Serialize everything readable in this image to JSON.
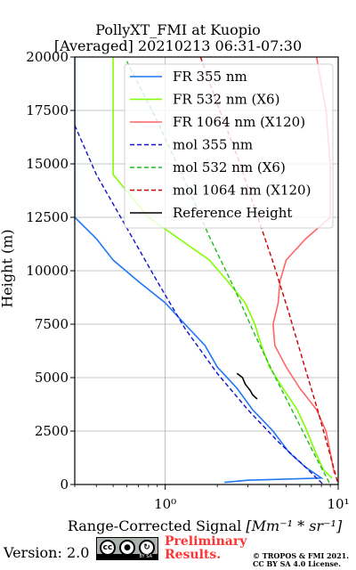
{
  "chart_data": {
    "type": "line",
    "title": "PollyXT_FMI at Kuopio",
    "subtitle": "[Averaged] 20210213 06:31-07:30",
    "ylabel": "Height (m)",
    "xlabel_text": "Range-Corrected Signal",
    "xlabel_units": "[Mm⁻¹ * sr⁻¹]",
    "xscale": "log",
    "xlim": [
      0.3,
      10
    ],
    "ylim": [
      0,
      20000
    ],
    "xticks": [
      {
        "value": 1,
        "label": "10⁰"
      },
      {
        "value": 10,
        "label": "10¹"
      }
    ],
    "yticks": [
      0,
      2500,
      5000,
      7500,
      10000,
      12500,
      15000,
      17500,
      20000
    ],
    "grid": true,
    "legend_position": "top-right",
    "series": [
      {
        "name": "FR 355 nm",
        "color": "#1f77f4",
        "style": "solid",
        "points": [
          [
            0.3,
            20000
          ],
          [
            0.3,
            17500
          ],
          [
            0.3,
            15000
          ],
          [
            0.3,
            12500
          ],
          [
            0.4,
            11500
          ],
          [
            0.5,
            10500
          ],
          [
            0.7,
            9500
          ],
          [
            1.0,
            8500
          ],
          [
            1.3,
            7500
          ],
          [
            1.7,
            6500
          ],
          [
            2.0,
            5500
          ],
          [
            2.6,
            4500
          ],
          [
            3.2,
            3500
          ],
          [
            4.2,
            2500
          ],
          [
            5.2,
            1500
          ],
          [
            6.5,
            800
          ],
          [
            8.0,
            300
          ],
          [
            3.0,
            200
          ],
          [
            2.2,
            100
          ]
        ]
      },
      {
        "name": "FR 532 nm (X6)",
        "color": "#7fff00",
        "style": "solid",
        "points": [
          [
            0.5,
            20000
          ],
          [
            0.5,
            17000
          ],
          [
            0.5,
            14500
          ],
          [
            0.8,
            12500
          ],
          [
            1.2,
            11500
          ],
          [
            1.8,
            10500
          ],
          [
            2.3,
            9500
          ],
          [
            2.9,
            8500
          ],
          [
            3.3,
            7500
          ],
          [
            3.6,
            6500
          ],
          [
            4.0,
            5500
          ],
          [
            4.8,
            4500
          ],
          [
            5.8,
            3500
          ],
          [
            6.6,
            2500
          ],
          [
            7.4,
            1500
          ],
          [
            8.2,
            700
          ],
          [
            9.2,
            300
          ]
        ]
      },
      {
        "name": "FR 1064 nm (X120)",
        "color": "#ff6666",
        "style": "solid",
        "points": [
          [
            7.5,
            20000
          ],
          [
            8.5,
            17500
          ],
          [
            9.0,
            15000
          ],
          [
            9.0,
            12500
          ],
          [
            6.5,
            11500
          ],
          [
            5.0,
            10500
          ],
          [
            4.6,
            9500
          ],
          [
            4.5,
            8500
          ],
          [
            4.2,
            7500
          ],
          [
            4.3,
            6500
          ],
          [
            5.0,
            5500
          ],
          [
            6.0,
            4500
          ],
          [
            7.5,
            3500
          ],
          [
            8.5,
            2500
          ],
          [
            9.0,
            1500
          ],
          [
            9.5,
            500
          ]
        ]
      },
      {
        "name": "mol 355 nm",
        "color": "#1111cc",
        "style": "dashed",
        "points": [
          [
            0.3,
            16800
          ],
          [
            0.4,
            14500
          ],
          [
            0.6,
            12000
          ],
          [
            0.9,
            9500
          ],
          [
            1.3,
            7300
          ],
          [
            2.0,
            5200
          ],
          [
            3.0,
            3500
          ],
          [
            4.5,
            2000
          ],
          [
            6.5,
            800
          ],
          [
            8.2,
            0
          ]
        ]
      },
      {
        "name": "mol 532 nm (X6)",
        "color": "#22bb22",
        "style": "dashed",
        "points": [
          [
            0.6,
            19800
          ],
          [
            0.9,
            17000
          ],
          [
            1.3,
            14200
          ],
          [
            1.8,
            11600
          ],
          [
            2.5,
            9200
          ],
          [
            3.3,
            7000
          ],
          [
            4.4,
            4900
          ],
          [
            5.8,
            3000
          ],
          [
            7.4,
            1300
          ],
          [
            9.0,
            0
          ]
        ]
      },
      {
        "name": "mol 1064 nm (X120)",
        "color": "#cc0000",
        "style": "dashed",
        "points": [
          [
            1.6,
            20000
          ],
          [
            2.0,
            17800
          ],
          [
            2.6,
            15400
          ],
          [
            3.3,
            12900
          ],
          [
            4.2,
            10400
          ],
          [
            5.2,
            8000
          ],
          [
            6.3,
            5700
          ],
          [
            7.6,
            3500
          ],
          [
            8.9,
            1500
          ],
          [
            10.0,
            0
          ]
        ]
      },
      {
        "name": "Reference Height",
        "color": "#000000",
        "style": "solid",
        "points": [
          [
            2.6,
            5200
          ],
          [
            2.8,
            5000
          ],
          [
            2.9,
            4700
          ],
          [
            3.1,
            4400
          ],
          [
            3.2,
            4200
          ],
          [
            3.4,
            4000
          ]
        ]
      }
    ]
  },
  "footer": {
    "version": "Version: 2.0",
    "license_badge": "BY  SA",
    "preliminary_line1": "Preliminary",
    "preliminary_line2": "Results.",
    "copyright_line1": "© TROPOS & FMI 2021.",
    "copyright_line2": "CC BY SA 4.0 License."
  }
}
